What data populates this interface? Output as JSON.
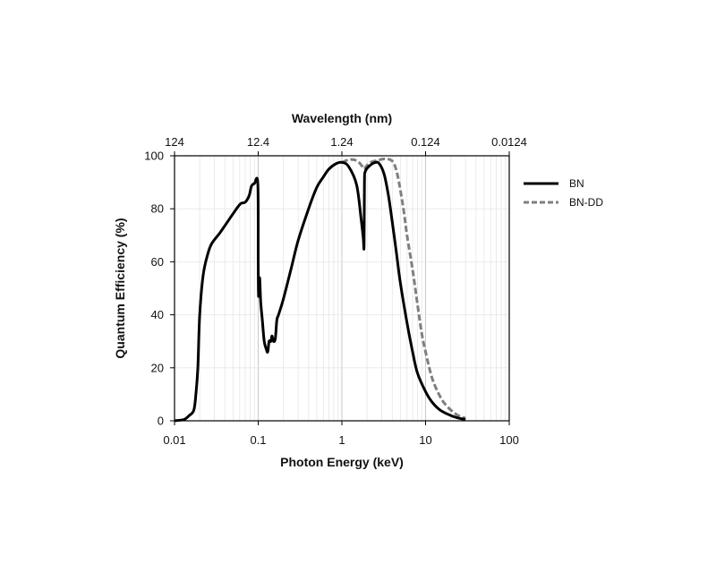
{
  "chart_data": {
    "type": "line",
    "xlabel": "Photon Energy (keV)",
    "ylabel": "Quantum Efficiency (%)",
    "x2label": "Wavelength (nm)",
    "xscale": "log",
    "xlim": [
      0.01,
      100
    ],
    "ylim": [
      0,
      100
    ],
    "x_ticks": [
      0.01,
      0.1,
      1,
      10,
      100
    ],
    "x_tick_labels": [
      "0.01",
      "0.1",
      "1",
      "10",
      "100"
    ],
    "x2_ticks": [
      0.01,
      0.1,
      1,
      10,
      100
    ],
    "x2_tick_labels": [
      "124",
      "12.4",
      "1.24",
      "0.124",
      "0.0124"
    ],
    "y_ticks": [
      0,
      20,
      40,
      60,
      80,
      100
    ],
    "y_tick_labels": [
      "0",
      "20",
      "40",
      "60",
      "80",
      "100"
    ],
    "grid": true,
    "legend_position": "right",
    "series": [
      {
        "name": "BN",
        "color": "#000000",
        "style": "solid",
        "points": [
          [
            0.01,
            0
          ],
          [
            0.013,
            0.5
          ],
          [
            0.015,
            2
          ],
          [
            0.017,
            4
          ],
          [
            0.018,
            10
          ],
          [
            0.019,
            20
          ],
          [
            0.02,
            40
          ],
          [
            0.022,
            55
          ],
          [
            0.025,
            63
          ],
          [
            0.028,
            67
          ],
          [
            0.035,
            71
          ],
          [
            0.045,
            76
          ],
          [
            0.055,
            80
          ],
          [
            0.062,
            82
          ],
          [
            0.07,
            82.5
          ],
          [
            0.078,
            85
          ],
          [
            0.083,
            88.5
          ],
          [
            0.09,
            89.5
          ],
          [
            0.099,
            89.3
          ],
          [
            0.1,
            60
          ],
          [
            0.101,
            47
          ],
          [
            0.104,
            54
          ],
          [
            0.107,
            45
          ],
          [
            0.112,
            38
          ],
          [
            0.118,
            30
          ],
          [
            0.125,
            27
          ],
          [
            0.13,
            26
          ],
          [
            0.135,
            30
          ],
          [
            0.142,
            30
          ],
          [
            0.146,
            32
          ],
          [
            0.152,
            30
          ],
          [
            0.16,
            31
          ],
          [
            0.167,
            38
          ],
          [
            0.175,
            40
          ],
          [
            0.2,
            46
          ],
          [
            0.25,
            58
          ],
          [
            0.3,
            68
          ],
          [
            0.4,
            80
          ],
          [
            0.5,
            88
          ],
          [
            0.6,
            92
          ],
          [
            0.7,
            95
          ],
          [
            0.85,
            97
          ],
          [
            1.0,
            97.5
          ],
          [
            1.2,
            96
          ],
          [
            1.5,
            89
          ],
          [
            1.7,
            76
          ],
          [
            1.8,
            69
          ],
          [
            1.84,
            66
          ],
          [
            1.86,
            90
          ],
          [
            1.9,
            94
          ],
          [
            2.1,
            96
          ],
          [
            2.5,
            97.5
          ],
          [
            2.8,
            97
          ],
          [
            3.2,
            93
          ],
          [
            3.6,
            85
          ],
          [
            4.0,
            75
          ],
          [
            4.5,
            63
          ],
          [
            5.0,
            52
          ],
          [
            6.0,
            37
          ],
          [
            7.0,
            26
          ],
          [
            8.0,
            18
          ],
          [
            10.0,
            11
          ],
          [
            12.0,
            7
          ],
          [
            15.0,
            4
          ],
          [
            20.0,
            2
          ],
          [
            25.0,
            1
          ],
          [
            30.0,
            0.5
          ]
        ]
      },
      {
        "name": "BN-DD",
        "color": "#7f7f7f",
        "style": "dashed",
        "points": [
          [
            1.0,
            97.5
          ],
          [
            1.2,
            98.5
          ],
          [
            1.4,
            98.5
          ],
          [
            1.6,
            97.5
          ],
          [
            1.75,
            96
          ],
          [
            1.84,
            95
          ],
          [
            1.95,
            96
          ],
          [
            2.2,
            97.5
          ],
          [
            2.7,
            98.3
          ],
          [
            3.2,
            98.8
          ],
          [
            3.8,
            98.5
          ],
          [
            4.2,
            97
          ],
          [
            4.6,
            93
          ],
          [
            5.0,
            87
          ],
          [
            5.5,
            79
          ],
          [
            6.0,
            70
          ],
          [
            7.0,
            57
          ],
          [
            8.0,
            44
          ],
          [
            9.0,
            33
          ],
          [
            10.0,
            26
          ],
          [
            12.0,
            16
          ],
          [
            15.0,
            9
          ],
          [
            18.0,
            5.5
          ],
          [
            22.0,
            3
          ],
          [
            26.0,
            1.6
          ],
          [
            30.0,
            1
          ]
        ]
      }
    ]
  }
}
